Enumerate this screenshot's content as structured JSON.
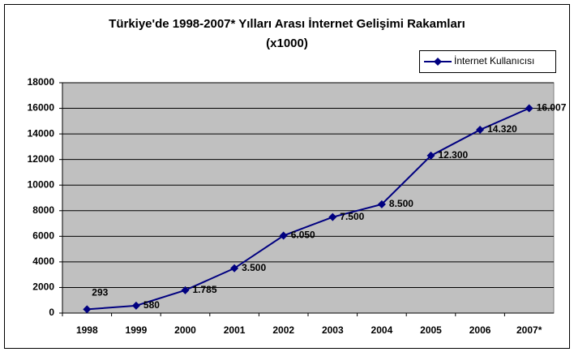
{
  "chart_data": {
    "type": "line",
    "title": "Türkiye'de 1998-2007* Yılları Arası  İnternet Gelişimi Rakamları",
    "subtitle": "(x1000)",
    "categories": [
      "1998",
      "1999",
      "2000",
      "2001",
      "2002",
      "2003",
      "2004",
      "2005",
      "2006",
      "2007*"
    ],
    "series": [
      {
        "name": "İnternet Kullanıcısı",
        "color": "#000080",
        "values": [
          293,
          580,
          1785,
          3500,
          6050,
          7500,
          8500,
          12300,
          14320,
          16007
        ],
        "value_labels": [
          "293",
          "580",
          "1.785",
          "3.500",
          "6.050",
          "7.500",
          "8.500",
          "12.300",
          "14.320",
          "16.007"
        ]
      }
    ],
    "ylim": [
      0,
      18000
    ],
    "yticks": [
      0,
      2000,
      4000,
      6000,
      8000,
      10000,
      12000,
      14000,
      16000,
      18000
    ],
    "grid": true,
    "legend": "top-right",
    "plot_background": "#c0c0c0"
  }
}
